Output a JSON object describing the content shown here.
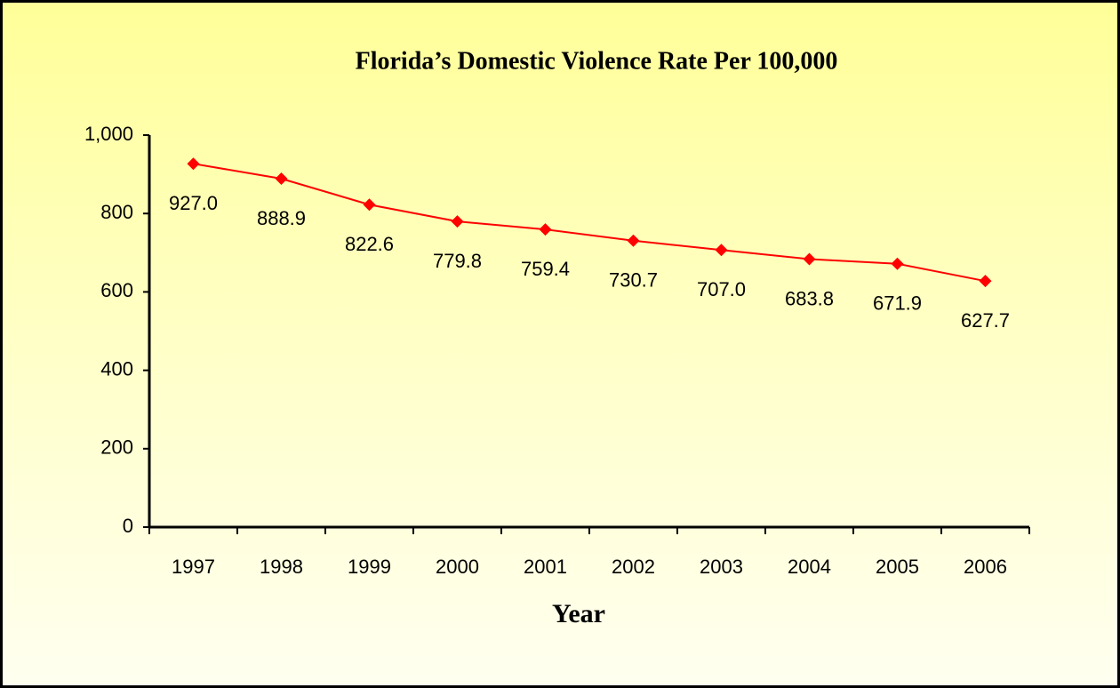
{
  "chart_data": {
    "type": "line",
    "title": "Florida’s Domestic Violence Rate Per 100,000",
    "x_label": "Year",
    "categories": [
      "1997",
      "1998",
      "1999",
      "2000",
      "2001",
      "2002",
      "2003",
      "2004",
      "2005",
      "2006"
    ],
    "series": [
      {
        "color": "#ff0000",
        "values": [
          927.0,
          888.9,
          822.6,
          779.8,
          759.4,
          730.7,
          707.0,
          683.8,
          671.9,
          627.7
        ],
        "value_labels": [
          "927.0",
          "888.9",
          "822.6",
          "779.8",
          "759.4",
          "730.7",
          "707.0",
          "683.8",
          "671.9",
          "627.7"
        ]
      }
    ],
    "ylim": [
      0,
      1000
    ],
    "yticks": [
      0,
      200,
      400,
      600,
      800,
      {
        "value": 1000,
        "label": "1,000"
      }
    ],
    "grid": false
  }
}
